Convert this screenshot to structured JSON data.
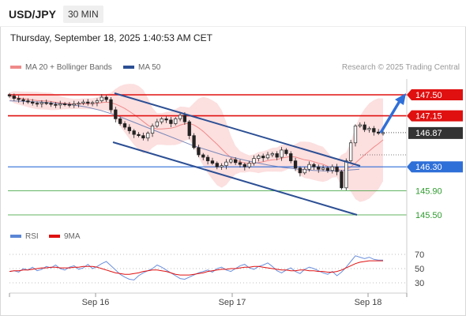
{
  "header": {
    "symbol": "USD/JPY",
    "timeframe": "30 MIN",
    "datetime": "Thursday, September 18, 2025 1:40:53 AM CET"
  },
  "legend": {
    "ma20": "MA 20 + Bollinger Bands",
    "ma50": "MA 50",
    "rsi": "RSI",
    "ma9": "9MA",
    "copyright": "Research © 2025 Trading Central"
  },
  "colors": {
    "resistance": "#e01010",
    "support_green": "#2e9a2e",
    "pivot_blue": "#2f6fd8",
    "channel": "#2c4f94",
    "bollinger": "#f9c5c5",
    "current_price_bg": "#333333"
  },
  "chart_data": {
    "type": "candlestick",
    "x_axis": {
      "ticks": [
        "Sep 16",
        "Sep 17",
        "Sep 18"
      ]
    },
    "price_levels": [
      {
        "value": 147.5,
        "label": "147.50",
        "kind": "resistance"
      },
      {
        "value": 147.15,
        "label": "147.15",
        "kind": "resistance"
      },
      {
        "value": 146.87,
        "label": "146.87",
        "kind": "current"
      },
      {
        "value": 146.3,
        "label": "146.30",
        "kind": "pivot"
      },
      {
        "value": 145.9,
        "label": "145.90",
        "kind": "support"
      },
      {
        "value": 145.5,
        "label": "145.50",
        "kind": "support"
      }
    ],
    "close_series": [
      147.48,
      147.44,
      147.42,
      147.4,
      147.38,
      147.36,
      147.35,
      147.37,
      147.36,
      147.34,
      147.33,
      147.35,
      147.34,
      147.33,
      147.35,
      147.36,
      147.38,
      147.36,
      147.37,
      147.4,
      147.46,
      147.42,
      147.25,
      147.1,
      147.02,
      146.96,
      146.9,
      146.84,
      146.82,
      146.78,
      146.86,
      146.98,
      147.05,
      147.1,
      147.08,
      147.02,
      147.1,
      147.16,
      147.05,
      146.82,
      146.62,
      146.5,
      146.46,
      146.4,
      146.36,
      146.3,
      146.32,
      146.38,
      146.42,
      146.37,
      146.34,
      146.3,
      146.36,
      146.44,
      146.48,
      146.45,
      146.5,
      146.52,
      146.46,
      146.58,
      146.52,
      146.4,
      146.28,
      146.2,
      146.26,
      146.34,
      146.3,
      146.26,
      146.28,
      146.24,
      146.3,
      146.22,
      145.95,
      146.4,
      146.7,
      146.98,
      147.0,
      146.92,
      146.94,
      146.88,
      146.86,
      146.87
    ],
    "ma50_series": [
      147.4,
      147.39,
      147.38,
      147.36,
      147.34,
      147.3,
      147.24,
      147.16,
      147.06,
      146.96,
      146.86,
      146.76,
      146.66,
      146.58,
      146.5,
      146.44,
      146.38,
      146.33,
      146.29,
      146.26,
      146.24,
      146.23,
      146.24,
      146.26
    ],
    "rsi": {
      "levels": [
        70,
        50,
        30
      ],
      "values": [
        46,
        47,
        45,
        50,
        48,
        52,
        47,
        49,
        53,
        51,
        55,
        50,
        48,
        52,
        54,
        49,
        51,
        56,
        50,
        53,
        57,
        60,
        54,
        48,
        42,
        38,
        35,
        34,
        40,
        44,
        47,
        50,
        55,
        52,
        48,
        44,
        40,
        36,
        35,
        38,
        41,
        44,
        46,
        48,
        45,
        50,
        52,
        48,
        46,
        50,
        54,
        56,
        51,
        49,
        53,
        55,
        58,
        53,
        47,
        44,
        48,
        51,
        46,
        43,
        49,
        52,
        50,
        47,
        44,
        42,
        46,
        40,
        45,
        52,
        60,
        68,
        66,
        64,
        66,
        63,
        62,
        62
      ],
      "ma9": [
        46,
        47,
        47,
        48,
        48,
        49,
        50,
        51,
        51,
        52,
        52,
        51,
        51,
        51,
        52,
        52,
        53,
        53,
        53,
        52,
        50,
        48,
        46,
        44,
        43,
        42,
        42,
        43,
        44,
        46,
        47,
        48,
        48,
        47,
        46,
        44,
        42,
        41,
        41,
        41,
        42,
        43,
        44,
        46,
        47,
        48,
        49,
        49,
        50,
        50,
        51,
        52,
        52,
        53,
        53,
        52,
        51,
        50,
        49,
        48,
        48,
        47,
        47,
        48,
        48,
        47,
        47,
        46,
        46,
        45,
        45,
        46,
        48,
        51,
        54,
        57,
        59,
        60,
        61,
        61,
        61,
        61
      ]
    }
  }
}
